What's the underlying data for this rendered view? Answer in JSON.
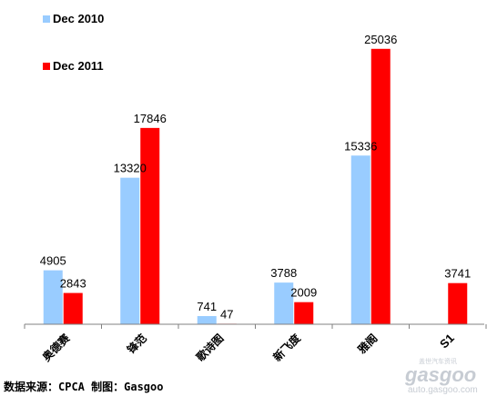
{
  "chart_data": {
    "type": "bar",
    "categories": [
      "奥德赛",
      "锋范",
      "歌诗图",
      "新飞度",
      "雅阁",
      "S1"
    ],
    "series": [
      {
        "name": "Dec 2010",
        "color": "#99ccff",
        "values": [
          4905,
          13320,
          741,
          3788,
          15336,
          null
        ]
      },
      {
        "name": "Dec 2011",
        "color": "#ff0000",
        "values": [
          2843,
          17846,
          47,
          2009,
          25036,
          3741
        ]
      }
    ],
    "ylim": [
      0,
      27000
    ],
    "grid": false,
    "legend_position": "top-left",
    "source": "数据来源：CPCA  制图：Gasgoo"
  },
  "watermark": {
    "brand": "gasgoo",
    "tagline": "盖世汽车资讯",
    "url": "auto.gasgoo.com"
  }
}
